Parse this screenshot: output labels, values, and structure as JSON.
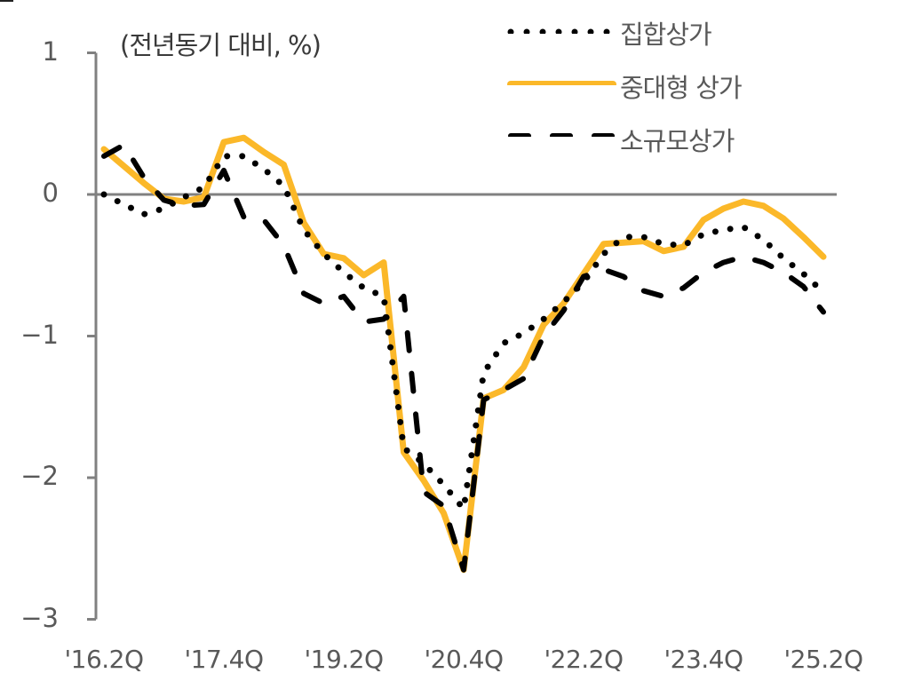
{
  "chart_data": {
    "type": "line",
    "title": "",
    "unit_label": "(전년동기 대비, %)",
    "xlabel": "",
    "ylabel": "(전년동기 대비, %)",
    "ylim": [
      -3,
      1
    ],
    "yticks": [
      1,
      0,
      -1,
      -2,
      -3
    ],
    "ytick_labels": [
      "1",
      "0",
      "−1",
      "−2",
      "−3"
    ],
    "grid": false,
    "zero_line": true,
    "legend_position": "top-right",
    "x": [
      "'16.2Q",
      "'16.3Q",
      "'16.4Q",
      "'17.1Q",
      "'17.2Q",
      "'17.3Q",
      "'17.4Q",
      "'18.1Q",
      "'18.2Q",
      "'18.3Q",
      "'18.4Q",
      "'19.1Q",
      "'19.2Q",
      "'19.3Q",
      "'19.4Q",
      "'20.1Q",
      "'20.2Q",
      "'20.3Q",
      "'20.4Q",
      "'21.1Q",
      "'21.2Q",
      "'21.3Q",
      "'21.4Q",
      "'22.1Q",
      "'22.2Q",
      "'22.3Q",
      "'22.4Q",
      "'23.1Q",
      "'23.2Q",
      "'23.3Q",
      "'23.4Q",
      "'24.1Q",
      "'24.2Q",
      "'24.3Q",
      "'24.4Q",
      "'25.1Q",
      "'25.2Q"
    ],
    "xtick_labels": [
      "'16.2Q",
      "'17.4Q",
      "'19.2Q",
      "'20.4Q",
      "'22.2Q",
      "'23.4Q",
      "'25.2Q"
    ],
    "xtick_indices": [
      0,
      6,
      12,
      18,
      24,
      30,
      36
    ],
    "series": [
      {
        "name": "집합상가",
        "style": "dotted",
        "color": "#000000",
        "values": [
          0.0,
          -0.07,
          -0.14,
          -0.1,
          -0.02,
          0.05,
          0.27,
          0.27,
          0.18,
          0.06,
          -0.25,
          -0.42,
          -0.55,
          -0.66,
          -0.72,
          -1.79,
          -1.9,
          -2.05,
          -2.22,
          -1.26,
          -1.05,
          -0.98,
          -0.88,
          -0.76,
          -0.62,
          -0.42,
          -0.3,
          -0.3,
          -0.35,
          -0.36,
          -0.28,
          -0.25,
          -0.23,
          -0.32,
          -0.45,
          -0.56,
          -0.69
        ]
      },
      {
        "name": "중대형 상가",
        "style": "solid",
        "color": "#FBB829",
        "values": [
          0.32,
          0.2,
          0.08,
          -0.03,
          -0.05,
          -0.02,
          0.37,
          0.4,
          0.3,
          0.21,
          -0.2,
          -0.42,
          -0.45,
          -0.57,
          -0.48,
          -1.82,
          -2.02,
          -2.25,
          -2.65,
          -1.44,
          -1.38,
          -1.22,
          -0.92,
          -0.77,
          -0.56,
          -0.35,
          -0.34,
          -0.33,
          -0.4,
          -0.37,
          -0.18,
          -0.1,
          -0.05,
          -0.08,
          -0.17,
          -0.3,
          -0.44
        ]
      },
      {
        "name": "소규모상가",
        "style": "dashed",
        "color": "#000000",
        "values": [
          0.27,
          0.35,
          0.12,
          -0.04,
          -0.08,
          -0.07,
          0.17,
          -0.16,
          -0.18,
          -0.36,
          -0.7,
          -0.77,
          -0.72,
          -0.9,
          -0.88,
          -0.72,
          -2.1,
          -2.2,
          -2.65,
          -1.45,
          -1.38,
          -1.3,
          -1.0,
          -0.82,
          -0.58,
          -0.53,
          -0.58,
          -0.68,
          -0.72,
          -0.66,
          -0.55,
          -0.48,
          -0.44,
          -0.48,
          -0.55,
          -0.65,
          -0.83
        ]
      }
    ]
  },
  "legend": {
    "items": [
      {
        "label": "집합상가",
        "style": "dotted",
        "color": "#000000"
      },
      {
        "label": "중대형 상가",
        "style": "solid",
        "color": "#FBB829"
      },
      {
        "label": "소규모상가",
        "style": "dashed",
        "color": "#000000"
      }
    ]
  },
  "colors": {
    "axis": "#808080",
    "text": "#595959",
    "gold": "#FBB829",
    "black": "#000000"
  }
}
